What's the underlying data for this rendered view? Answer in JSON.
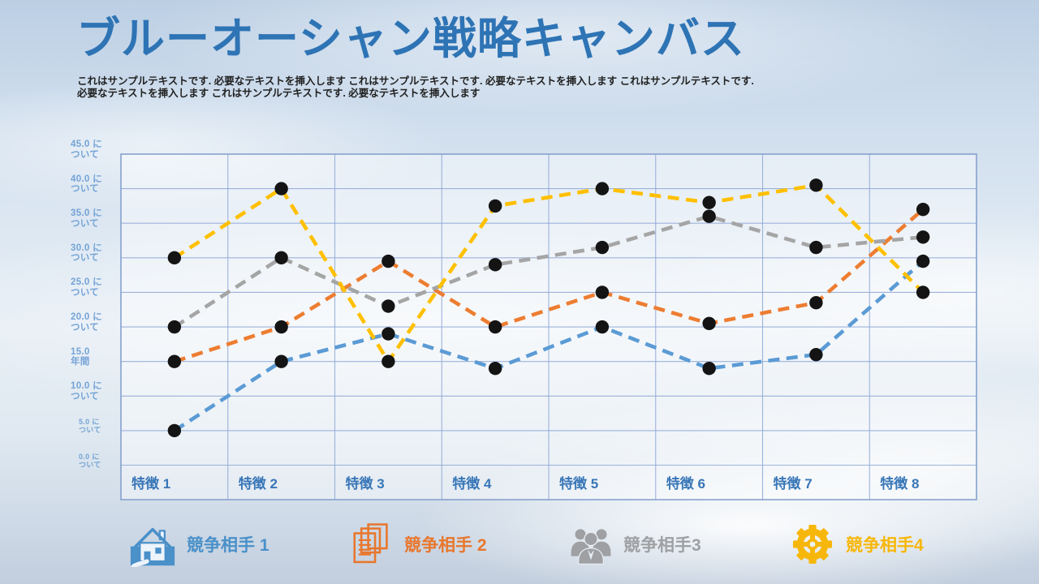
{
  "title": "ブルーオーシャン戦略キャンバス",
  "subtitle": "これはサンプルテキストです. 必要なテキストを挿入します これはサンプルテキストです. 必要なテキストを挿入します これはサンプルテキストです. 必要なテキストを挿入します これはサンプルテキストです. 必要なテキストを挿入します",
  "colors": {
    "title": "#2E74B5",
    "axis_labels": "#74A3D6",
    "category_labels": "#3876B7",
    "gridline": "#93ABD8",
    "plot_border": "#87A2CE",
    "marker": "#141414",
    "series_blue": "#5B9BD5",
    "series_orange": "#ED7D31",
    "series_gray": "#A5A5A5",
    "series_yellow": "#FFC000"
  },
  "chart_data": {
    "type": "line",
    "title": "ブルーオーシャン戦略キャンバス",
    "categories": [
      "特徴 1",
      "特徴 2",
      "特徴 3",
      "特徴 4",
      "特徴 5",
      "特徴 6",
      "特徴 7",
      "特徴 8"
    ],
    "series": [
      {
        "name": "競争相手 1",
        "color": "#5B9BD5",
        "values": [
          5,
          15,
          19,
          14,
          20,
          14,
          16,
          29.5
        ]
      },
      {
        "name": "競争相手 2",
        "color": "#ED7D31",
        "values": [
          15,
          20,
          29.5,
          20,
          25,
          20.5,
          23.5,
          37
        ]
      },
      {
        "name": "競争相手3",
        "color": "#A5A5A5",
        "values": [
          20,
          30,
          23,
          29,
          31.5,
          36,
          31.5,
          33
        ]
      },
      {
        "name": "競争相手4",
        "color": "#FFC000",
        "values": [
          30,
          40,
          15,
          37.5,
          40,
          38,
          40.5,
          25
        ]
      }
    ],
    "ylim": [
      0,
      45
    ],
    "ytick_step": 5,
    "yticks": [
      {
        "value": 45,
        "label": "45.0 に\nついて",
        "small": false
      },
      {
        "value": 40,
        "label": "40.0 に\nついて",
        "small": false
      },
      {
        "value": 35,
        "label": "35.0 に\nついて",
        "small": false
      },
      {
        "value": 30,
        "label": "30.0 に\nついて",
        "small": false
      },
      {
        "value": 25,
        "label": "25.0 に\nついて",
        "small": false
      },
      {
        "value": 20,
        "label": "20.0 に\nついて",
        "small": false
      },
      {
        "value": 15,
        "label": "15.0\n年間",
        "small": false
      },
      {
        "value": 10,
        "label": "10.0 に\nついて",
        "small": false
      },
      {
        "value": 5,
        "label": "5.0 に\nついて",
        "small": true
      },
      {
        "value": 0,
        "label": "0.0 に\nついて",
        "small": true
      }
    ],
    "style": {
      "line_dashed": true,
      "marker": "black-dot",
      "grid": true,
      "legend_position": "bottom"
    }
  },
  "legend": {
    "items": [
      {
        "label": "競争相手 1",
        "color": "#4A90C9",
        "icon": "house-icon"
      },
      {
        "label": "競争相手 2",
        "color": "#E8762C",
        "icon": "documents-icon"
      },
      {
        "label": "競争相手3",
        "color": "#9EA0A3",
        "icon": "people-group-icon"
      },
      {
        "label": "競争相手4",
        "color": "#F7B70A",
        "icon": "gear-icon"
      }
    ]
  }
}
